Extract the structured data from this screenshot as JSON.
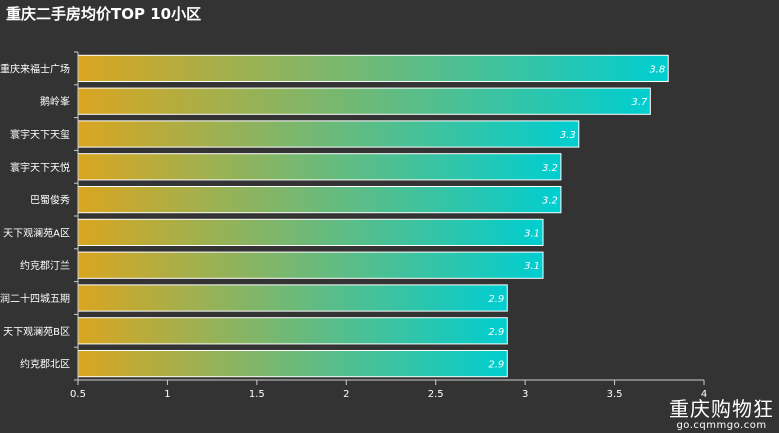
{
  "chart_data": {
    "type": "bar",
    "orientation": "horizontal",
    "title": "重庆二手房均价TOP 10小区",
    "categories": [
      "重庆来福士广场",
      "鹅岭峯",
      "寰宇天下天玺",
      "寰宇天下天悦",
      "巴蜀俊秀",
      "天下观澜苑A区",
      "约克郡汀兰",
      "润二十四城五期",
      "天下观澜苑B区",
      "约克郡北区"
    ],
    "values": [
      3.8,
      3.7,
      3.3,
      3.2,
      3.2,
      3.1,
      3.1,
      2.9,
      2.9,
      2.9
    ],
    "value_labels": [
      "3.8",
      "3.7",
      "3.3",
      "3.2",
      "3.2",
      "3.1",
      "3.1",
      "2.9",
      "2.9",
      "2.9"
    ],
    "xlim": [
      0.5,
      4
    ],
    "xticks": [
      "0.5",
      "1",
      "1.5",
      "2",
      "2.5",
      "3",
      "3.5",
      "4"
    ],
    "xtick_values": [
      0.5,
      1,
      1.5,
      2,
      2.5,
      3,
      3.5,
      4
    ],
    "bar_gradient": [
      "#daa520",
      "#00ced1"
    ],
    "grid": false,
    "xlabel": "",
    "ylabel": ""
  },
  "watermark": {
    "main": "重庆购物狂",
    "sub": "go.cqmmgo.com"
  }
}
